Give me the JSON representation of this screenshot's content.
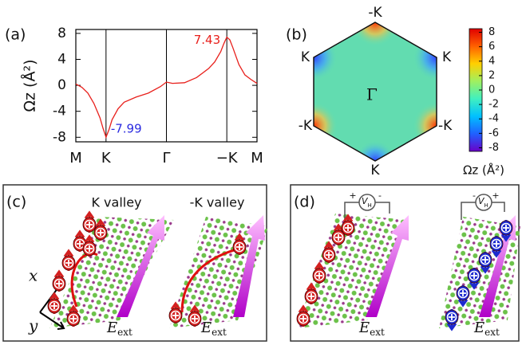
{
  "chart_data": {
    "type": "line",
    "panel_label": "(a)",
    "ylabel": "Ωz (Å²)",
    "x": [
      -0.5,
      -0.4,
      -0.3,
      -0.2,
      -0.1,
      -0.05,
      0,
      0.05,
      0.1,
      0.2,
      0.3,
      0.5,
      0.7,
      0.9,
      1.0,
      1.1,
      1.3,
      1.5,
      1.7,
      1.8,
      1.9,
      1.95,
      2.0,
      2.05,
      2.1,
      2.2,
      2.3,
      2.4,
      2.5
    ],
    "series": [
      {
        "color": "#e8201c",
        "values": [
          0.2,
          -0.3,
          -1.2,
          -2.8,
          -5,
          -6.6,
          -7.99,
          -6.8,
          -5.3,
          -3.6,
          -2.6,
          -1.8,
          -1.2,
          -0.2,
          0.5,
          0.3,
          0.4,
          1.2,
          2.6,
          3.6,
          5.2,
          6.4,
          7.43,
          7.0,
          5.8,
          3.2,
          1.6,
          0.9,
          0.3
        ]
      }
    ],
    "xlim": [
      -0.5,
      2.5
    ],
    "xticks": [
      {
        "value": -0.5,
        "label": "M"
      },
      {
        "value": 0,
        "label": "K"
      },
      {
        "value": 1,
        "label": "Γ"
      },
      {
        "value": 2,
        "label": "−K"
      },
      {
        "value": 2.5,
        "label": "M"
      }
    ],
    "ylim": [
      -8.7,
      8.6
    ],
    "yticks": [
      8,
      4,
      0,
      -4,
      -8
    ],
    "annotations": [
      {
        "text": "7.43",
        "x": 2,
        "y": 7.43,
        "color": "#e8201c"
      },
      {
        "text": "-7.99",
        "x": 0,
        "y": -7.99,
        "color": "#2a2ae0"
      }
    ]
  },
  "panel_b": {
    "label": "(b)",
    "center_label": "Γ",
    "vertex_labels": [
      "-K",
      "K",
      "-K",
      "K",
      "-K",
      "K"
    ],
    "colorbar": {
      "label": "Ωz (Å²)",
      "lim": [
        -8.5,
        8.5
      ],
      "ticks": [
        8,
        6,
        4,
        2,
        0,
        -2,
        -4,
        -6,
        -8
      ],
      "colors": [
        "#6a00c8",
        "#2060ff",
        "#00c0ff",
        "#40f0c0",
        "#a0f060",
        "#ffd000",
        "#ff6000",
        "#e00000"
      ]
    }
  },
  "panel_c": {
    "label": "(c)",
    "valleys": [
      "K valley",
      "-K valley"
    ],
    "axes": [
      "x",
      "y"
    ],
    "field": {
      "symbol": "E",
      "subscript": "ext"
    }
  },
  "panel_d": {
    "label": "(d)",
    "voltage": {
      "symbol": "V",
      "subscript": "H"
    },
    "polarity": [
      "+",
      "-"
    ],
    "field": {
      "symbol": "E",
      "subscript": "ext"
    }
  }
}
